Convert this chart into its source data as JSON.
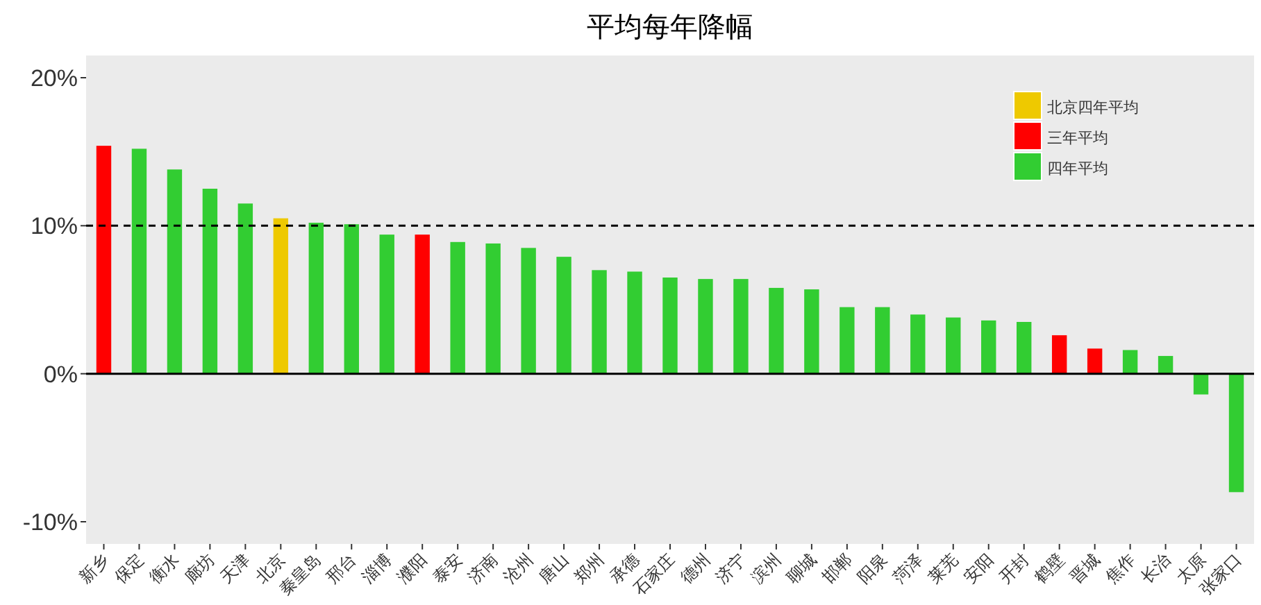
{
  "chart_data": {
    "type": "bar",
    "title": "平均每年降幅",
    "categories": [
      "新乡",
      "保定",
      "衡水",
      "廊坊",
      "天津",
      "北京",
      "秦皇岛",
      "邢台",
      "淄博",
      "濮阳",
      "泰安",
      "济南",
      "沧州",
      "唐山",
      "郑州",
      "承德",
      "石家庄",
      "德州",
      "济宁",
      "滨州",
      "聊城",
      "邯郸",
      "阳泉",
      "菏泽",
      "莱芜",
      "安阳",
      "开封",
      "鹤壁",
      "晋城",
      "焦作",
      "长治",
      "太原",
      "张家口"
    ],
    "series": [
      {
        "name": "北京四年平均",
        "color": "#eec900",
        "values": [
          null,
          null,
          null,
          null,
          null,
          10.5,
          null,
          null,
          null,
          null,
          null,
          null,
          null,
          null,
          null,
          null,
          null,
          null,
          null,
          null,
          null,
          null,
          null,
          null,
          null,
          null,
          null,
          null,
          null,
          null,
          null,
          null,
          null
        ]
      },
      {
        "name": "三年平均",
        "color": "#ff0000",
        "values": [
          15.4,
          null,
          null,
          null,
          null,
          null,
          null,
          null,
          null,
          9.4,
          null,
          null,
          null,
          null,
          null,
          null,
          null,
          null,
          null,
          null,
          null,
          null,
          null,
          null,
          null,
          null,
          null,
          2.6,
          1.7,
          null,
          null,
          null,
          null
        ]
      },
      {
        "name": "四年平均",
        "color": "#32cd32",
        "values": [
          null,
          15.2,
          13.8,
          12.5,
          11.5,
          null,
          10.2,
          10.1,
          9.4,
          null,
          8.9,
          8.8,
          8.5,
          7.9,
          7.0,
          6.9,
          6.5,
          6.4,
          6.4,
          5.8,
          5.7,
          4.5,
          4.5,
          4.0,
          3.8,
          3.6,
          3.5,
          null,
          null,
          1.6,
          1.2,
          -1.4,
          -8.0
        ]
      }
    ],
    "ylim": [
      -11.5,
      21.5
    ],
    "yticks": [
      {
        "value": -10,
        "label": "-10%"
      },
      {
        "value": 0,
        "label": "0%"
      },
      {
        "value": 10,
        "label": "10%"
      },
      {
        "value": 20,
        "label": "20%"
      }
    ],
    "ref_lines": [
      {
        "axis": "y",
        "value": 10,
        "line_style": "dashed",
        "color": "#000000"
      },
      {
        "axis": "y",
        "value": 0,
        "line_style": "solid",
        "color": "#000000"
      }
    ],
    "legend": "top right"
  }
}
